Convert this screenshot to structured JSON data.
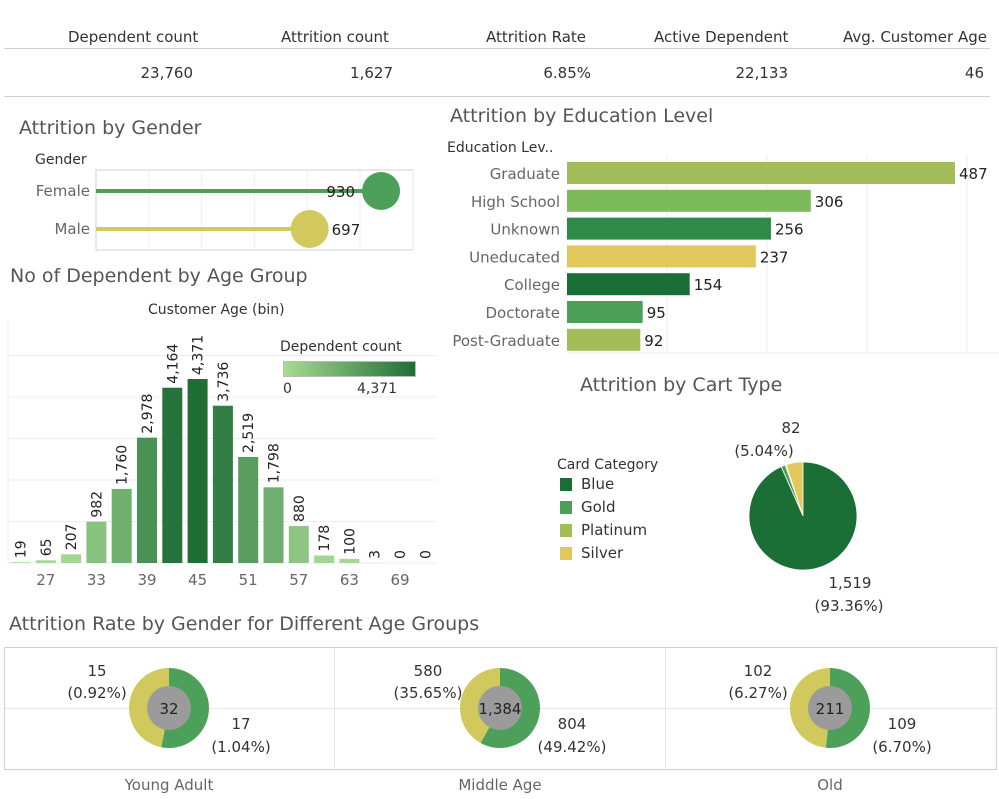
{
  "kpis": {
    "headers": [
      "Dependent count",
      "Attrition count",
      "Attrition Rate",
      "Active Dependent",
      "Avg. Customer Age"
    ],
    "values": [
      "23,760",
      "1,627",
      "6.85%",
      "22,133",
      "46"
    ]
  },
  "colors": {
    "dark_green": "#1a6e36",
    "mid_green": "#2e8b47",
    "green": "#4ca05a",
    "light_green": "#7dbb5a",
    "olive": "#a4bd5b",
    "yellow": "#e2c85c",
    "khaki": "#d1c95c",
    "grey": "#9b9b9b"
  },
  "chart_data": [
    {
      "type": "lollipop",
      "title": "Attrition by Gender",
      "dimension_label": "Gender",
      "categories": [
        "Female",
        "Male"
      ],
      "values": [
        930,
        697
      ],
      "value_labels": [
        "930",
        "697"
      ]
    },
    {
      "type": "bar",
      "orientation": "horizontal",
      "title": "Attrition by Education Level",
      "dimension_label": "Education Lev..",
      "categories": [
        "Graduate",
        "High School",
        "Unknown",
        "Uneducated",
        "College",
        "Doctorate",
        "Post-Graduate"
      ],
      "values": [
        487,
        306,
        256,
        237,
        154,
        95,
        92
      ],
      "value_labels": [
        "487",
        "306",
        "256",
        "237",
        "154",
        "95",
        "92"
      ]
    },
    {
      "type": "bar",
      "title": "No of Dependent by Age Group",
      "xlabel": "Customer Age (bin)",
      "categories": [
        24,
        27,
        30,
        33,
        36,
        39,
        42,
        45,
        48,
        51,
        54,
        57,
        60,
        63,
        66,
        69,
        72
      ],
      "values": [
        19,
        65,
        207,
        982,
        1760,
        2978,
        4164,
        4371,
        3736,
        2519,
        1798,
        880,
        178,
        100,
        3,
        0,
        0
      ],
      "value_labels": [
        "19",
        "65",
        "207",
        "982",
        "1,760",
        "2,978",
        "4,164",
        "4,371",
        "3,736",
        "2,519",
        "1,798",
        "880",
        "178",
        "100",
        "3",
        "0",
        "0"
      ],
      "tick_labels": [
        "27",
        "33",
        "39",
        "45",
        "51",
        "57",
        "63",
        "69"
      ],
      "legend": {
        "title": "Dependent count",
        "min_label": "0",
        "max_label": "4,371"
      }
    },
    {
      "type": "pie",
      "title": "Attrition by Cart Type",
      "legend_title": "Card Category",
      "categories": [
        "Blue",
        "Gold",
        "Platinum",
        "Silver"
      ],
      "values": [
        1519,
        21,
        5,
        82
      ],
      "callouts": [
        {
          "value": "82",
          "pct": "(5.04%)"
        },
        {
          "value": "1,519",
          "pct": "(93.36%)"
        }
      ]
    },
    {
      "type": "pie",
      "title": "Attrition Rate by Gender for Different Age Groups",
      "groups": [
        {
          "name": "Young Adult",
          "total": "32",
          "female": 17,
          "male": 15,
          "female_label": "17",
          "female_pct": "(1.04%)",
          "male_label": "15",
          "male_pct": "(0.92%)"
        },
        {
          "name": "Middle Age",
          "total": "1,384",
          "female": 804,
          "male": 580,
          "female_label": "804",
          "female_pct": "(49.42%)",
          "male_label": "580",
          "male_pct": "(35.65%)"
        },
        {
          "name": "Old",
          "total": "211",
          "female": 109,
          "male": 102,
          "female_label": "109",
          "female_pct": "(6.70%)",
          "male_label": "102",
          "male_pct": "(6.27%)"
        }
      ]
    }
  ]
}
